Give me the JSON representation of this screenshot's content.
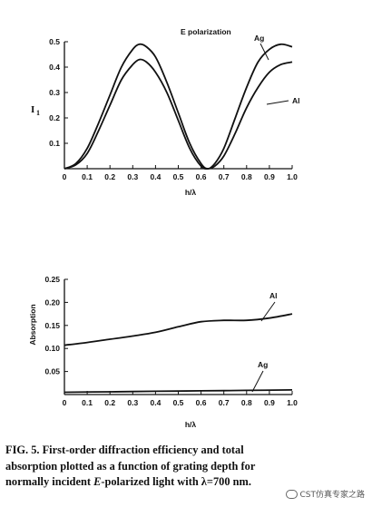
{
  "chart_data": [
    {
      "type": "line",
      "title": "E polarization",
      "xlabel": "h/λ",
      "ylabel": "I",
      "ylabel_subscript": "1",
      "xlim": [
        0,
        1.0
      ],
      "ylim": [
        0,
        0.5
      ],
      "x_ticks": [
        "0",
        "0.1",
        "0.2",
        "0.3",
        "0.4",
        "0.5",
        "0.6",
        "0.7",
        "0.8",
        "0.9",
        "1.0"
      ],
      "y_ticks": [
        "0.1",
        "0.2",
        "0.3",
        "0.4",
        "0.5"
      ],
      "series": [
        {
          "name": "Ag",
          "x": [
            0,
            0.05,
            0.1,
            0.15,
            0.2,
            0.25,
            0.3,
            0.33,
            0.36,
            0.4,
            0.45,
            0.5,
            0.55,
            0.6,
            0.63,
            0.66,
            0.7,
            0.75,
            0.8,
            0.85,
            0.9,
            0.95,
            1.0
          ],
          "y": [
            0,
            0.02,
            0.08,
            0.18,
            0.29,
            0.4,
            0.47,
            0.49,
            0.48,
            0.44,
            0.34,
            0.22,
            0.1,
            0.02,
            0.0,
            0.02,
            0.08,
            0.2,
            0.32,
            0.42,
            0.47,
            0.49,
            0.48
          ]
        },
        {
          "name": "Al",
          "x": [
            0,
            0.05,
            0.1,
            0.15,
            0.2,
            0.25,
            0.3,
            0.33,
            0.36,
            0.4,
            0.45,
            0.5,
            0.55,
            0.6,
            0.63,
            0.66,
            0.7,
            0.75,
            0.8,
            0.85,
            0.9,
            0.95,
            1.0
          ],
          "y": [
            0,
            0.015,
            0.06,
            0.15,
            0.25,
            0.35,
            0.41,
            0.43,
            0.42,
            0.38,
            0.3,
            0.19,
            0.08,
            0.01,
            0.0,
            0.01,
            0.05,
            0.14,
            0.24,
            0.32,
            0.38,
            0.41,
            0.42
          ]
        }
      ]
    },
    {
      "type": "line",
      "xlabel": "h/λ",
      "ylabel": "Absorption",
      "xlim": [
        0,
        1.0
      ],
      "ylim": [
        0,
        0.25
      ],
      "x_ticks": [
        "0",
        "0.1",
        "0.2",
        "0.3",
        "0.4",
        "0.5",
        "0.6",
        "0.7",
        "0.8",
        "0.9",
        "1.0"
      ],
      "y_ticks": [
        "0.05",
        "0.10",
        "0.15",
        "0.20",
        "0.25"
      ],
      "series": [
        {
          "name": "Al",
          "x": [
            0,
            0.1,
            0.2,
            0.3,
            0.4,
            0.5,
            0.6,
            0.7,
            0.8,
            0.9,
            1.0
          ],
          "y": [
            0.107,
            0.113,
            0.12,
            0.127,
            0.135,
            0.147,
            0.158,
            0.161,
            0.161,
            0.166,
            0.175
          ]
        },
        {
          "name": "Ag",
          "x": [
            0,
            0.2,
            0.4,
            0.6,
            0.8,
            1.0
          ],
          "y": [
            0.005,
            0.006,
            0.007,
            0.008,
            0.009,
            0.01
          ]
        }
      ]
    }
  ],
  "caption": {
    "line1": "FIG. 5.  First-order diffraction efficiency and total",
    "line2": "absorption plotted as a function of grating depth for",
    "line3_a": "normally incident ",
    "line3_em": "E",
    "line3_b": "-polarized light with λ=700 nm."
  },
  "watermark": "CST仿真专家之路"
}
